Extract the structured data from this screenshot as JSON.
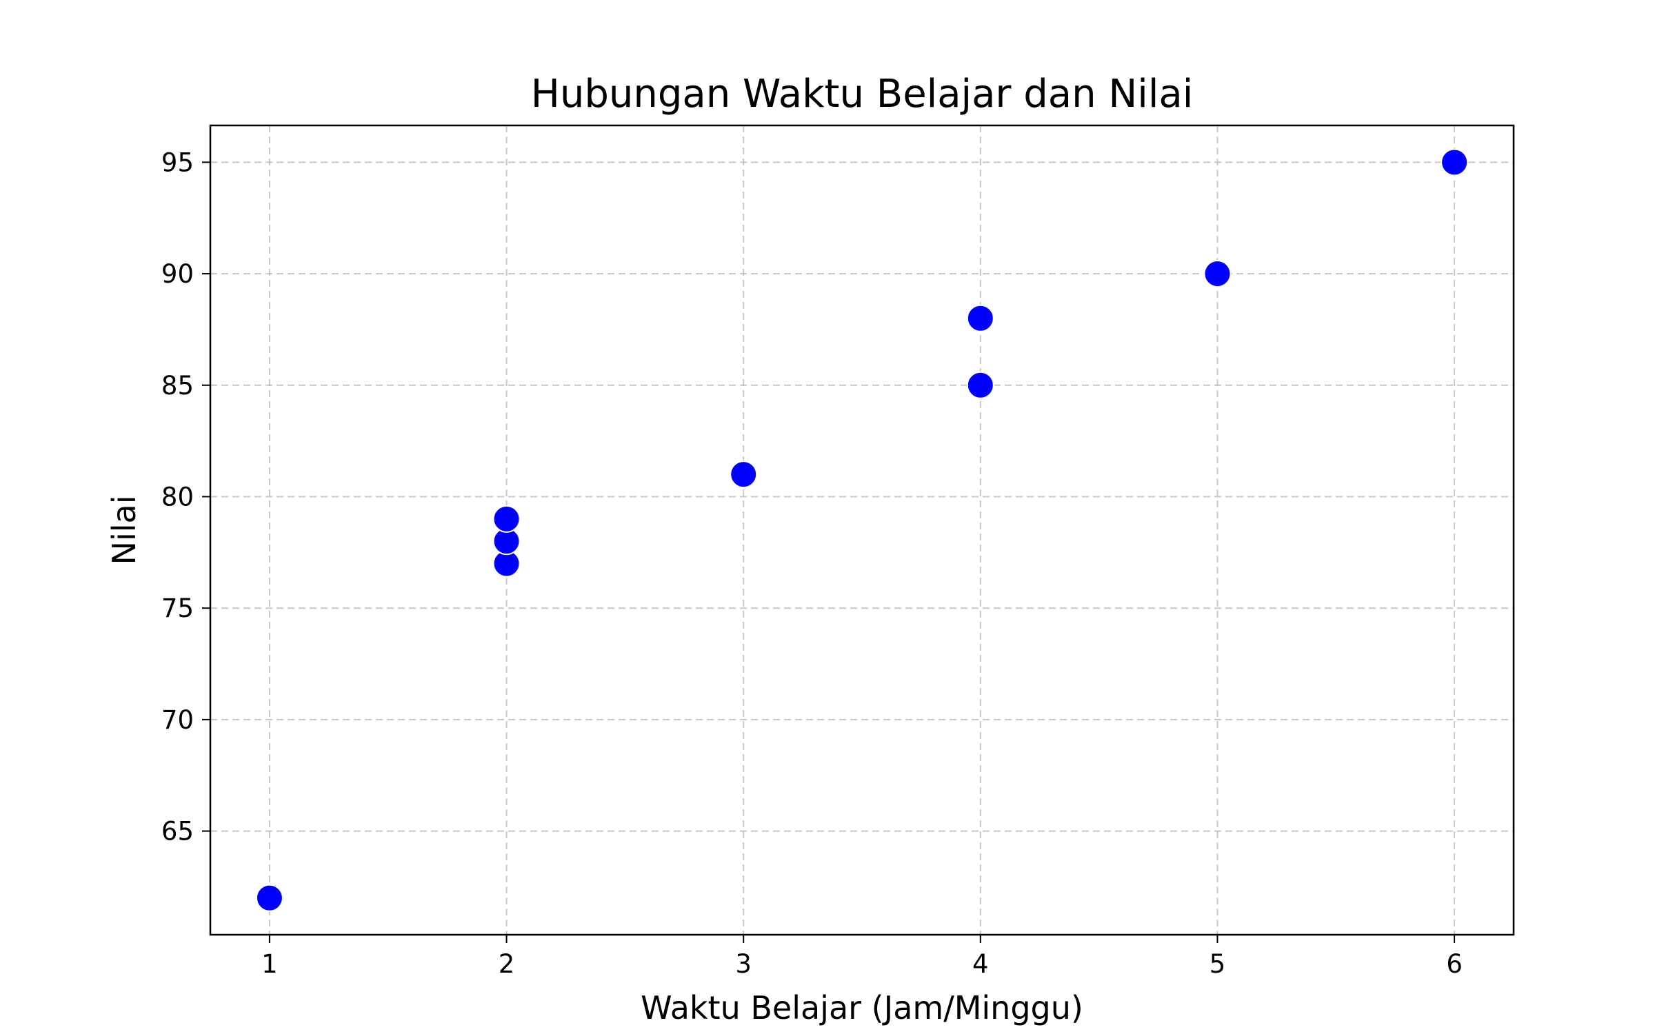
{
  "chart_data": {
    "type": "scatter",
    "title": "Hubungan Waktu Belajar dan Nilai",
    "xlabel": "Waktu Belajar (Jam/Minggu)",
    "ylabel": "Nilai",
    "xlim": [
      0.75,
      6.25
    ],
    "ylim": [
      60.35,
      96.65
    ],
    "xticks": [
      1,
      2,
      3,
      4,
      5,
      6
    ],
    "yticks": [
      65,
      70,
      75,
      80,
      85,
      90,
      95
    ],
    "grid": true,
    "marker_color": "#0000ff",
    "points": [
      {
        "x": 1,
        "y": 62
      },
      {
        "x": 2,
        "y": 77
      },
      {
        "x": 2,
        "y": 78
      },
      {
        "x": 2,
        "y": 79
      },
      {
        "x": 3,
        "y": 81
      },
      {
        "x": 4,
        "y": 85
      },
      {
        "x": 4,
        "y": 88
      },
      {
        "x": 5,
        "y": 90
      },
      {
        "x": 6,
        "y": 95
      }
    ]
  }
}
